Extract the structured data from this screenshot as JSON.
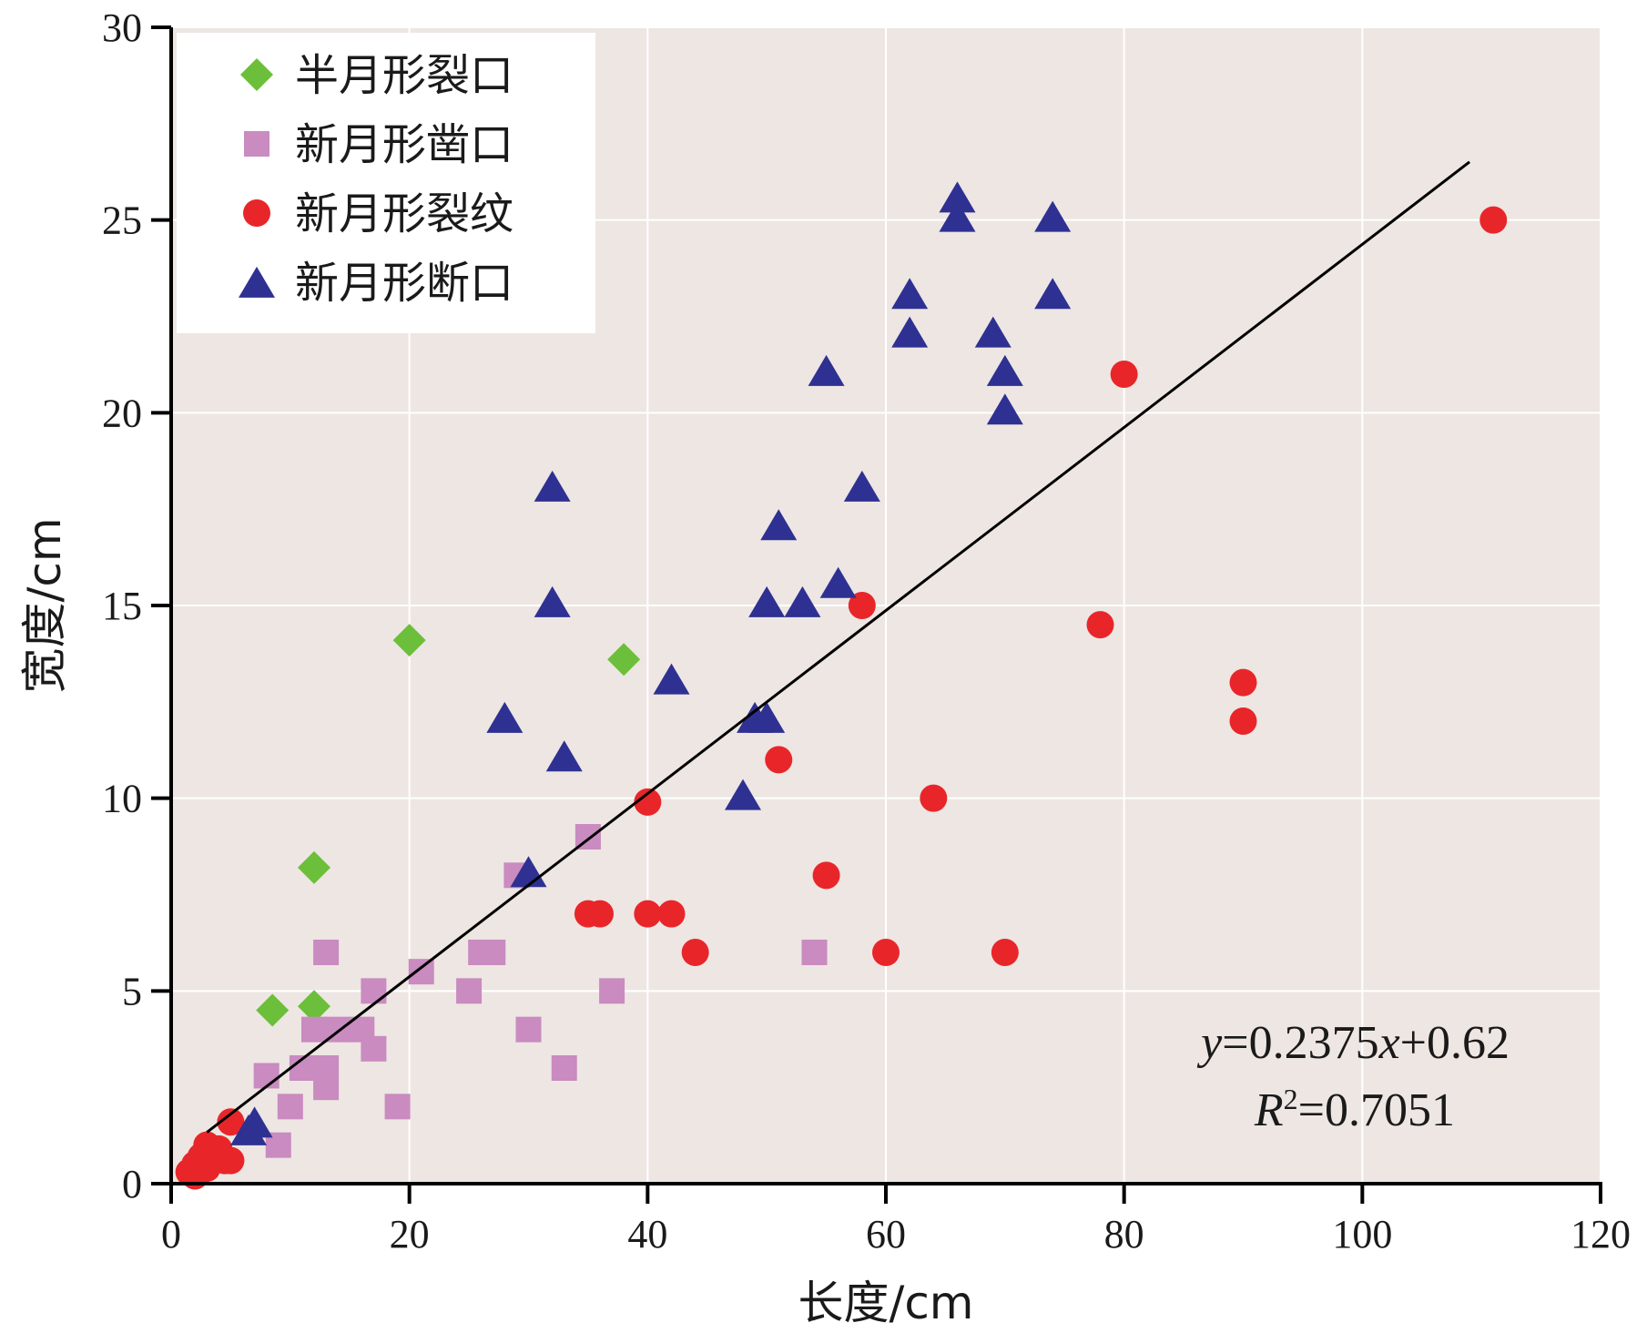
{
  "chart_data": {
    "type": "scatter",
    "title": "",
    "xlabel": "长度/cm",
    "ylabel": "宽度/cm",
    "xlim": [
      0,
      120
    ],
    "ylim": [
      0,
      30
    ],
    "x_ticks": [
      0,
      20,
      40,
      60,
      80,
      100,
      120
    ],
    "y_ticks": [
      0,
      5,
      10,
      15,
      20,
      25,
      30
    ],
    "grid": true,
    "legend_position": "top-left",
    "series": [
      {
        "name": "半月形裂口",
        "marker": "diamond",
        "color": "#6cbf3a",
        "points": [
          [
            20,
            14.1
          ],
          [
            38,
            13.6
          ],
          [
            12,
            8.2
          ],
          [
            8.5,
            4.5
          ],
          [
            12,
            4.6
          ]
        ]
      },
      {
        "name": "新月形凿口",
        "marker": "square",
        "color": "#c98bc0",
        "points": [
          [
            35,
            9
          ],
          [
            29,
            8
          ],
          [
            13,
            6
          ],
          [
            21,
            5.5
          ],
          [
            26,
            6
          ],
          [
            27,
            6
          ],
          [
            17,
            5
          ],
          [
            25,
            5
          ],
          [
            37,
            5
          ],
          [
            54,
            6
          ],
          [
            12,
            4
          ],
          [
            14,
            4
          ],
          [
            16,
            4
          ],
          [
            30,
            4
          ],
          [
            11,
            3
          ],
          [
            13,
            3
          ],
          [
            17,
            3.5
          ],
          [
            33,
            3
          ],
          [
            8,
            2.8
          ],
          [
            13,
            2.5
          ],
          [
            10,
            2
          ],
          [
            19,
            2
          ],
          [
            9,
            1
          ]
        ]
      },
      {
        "name": "新月形裂纹",
        "marker": "circle",
        "color": "#e8262a",
        "points": [
          [
            111,
            25
          ],
          [
            80,
            21
          ],
          [
            58,
            15
          ],
          [
            78,
            14.5
          ],
          [
            90,
            13
          ],
          [
            90,
            12
          ],
          [
            51,
            11
          ],
          [
            40,
            9.9
          ],
          [
            64,
            10
          ],
          [
            55,
            8
          ],
          [
            35,
            7
          ],
          [
            36,
            7
          ],
          [
            40,
            7
          ],
          [
            42,
            7
          ],
          [
            44,
            6
          ],
          [
            60,
            6
          ],
          [
            70,
            6
          ],
          [
            5,
            1.6
          ],
          [
            3,
            1
          ],
          [
            3.5,
            0.8
          ],
          [
            4,
            0.9
          ],
          [
            2,
            0.5
          ],
          [
            2.5,
            0.7
          ],
          [
            4.5,
            0.6
          ],
          [
            5,
            0.6
          ],
          [
            3,
            0.4
          ],
          [
            1.5,
            0.3
          ],
          [
            2,
            0.2
          ]
        ]
      },
      {
        "name": "新月形断口",
        "marker": "triangle",
        "color": "#2e3192",
        "points": [
          [
            66,
            25.5
          ],
          [
            66,
            25
          ],
          [
            74,
            25
          ],
          [
            62,
            23
          ],
          [
            74,
            23
          ],
          [
            62,
            22
          ],
          [
            69,
            22
          ],
          [
            55,
            21
          ],
          [
            70,
            21
          ],
          [
            70,
            20
          ],
          [
            32,
            18
          ],
          [
            58,
            18
          ],
          [
            51,
            17
          ],
          [
            56,
            15.5
          ],
          [
            32,
            15
          ],
          [
            50,
            15
          ],
          [
            53,
            15
          ],
          [
            42,
            13
          ],
          [
            28,
            12
          ],
          [
            49,
            12
          ],
          [
            50,
            12
          ],
          [
            33,
            11
          ],
          [
            48,
            10
          ],
          [
            30,
            8
          ],
          [
            7,
            1.5
          ],
          [
            6.5,
            1.3
          ]
        ]
      }
    ],
    "trendline": {
      "slope": 0.2375,
      "intercept": 0.62,
      "x_range": [
        3,
        109
      ],
      "equation": {
        "y_var": "y",
        "mid": "=0.2375",
        "x_var": "x",
        "tail": "+0.62"
      },
      "r2": {
        "var": "R",
        "sup": "2",
        "value": "=0.7051"
      }
    }
  }
}
